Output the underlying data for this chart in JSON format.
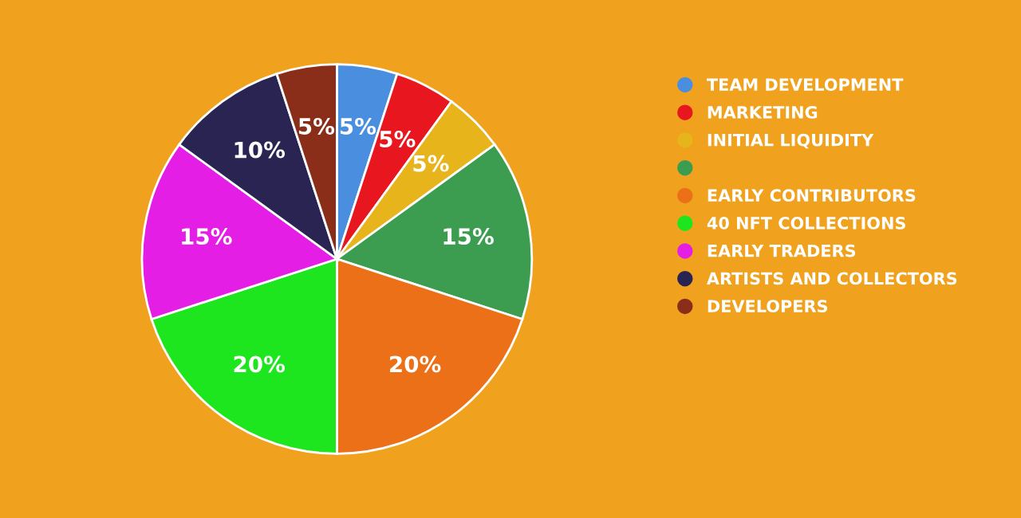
{
  "chart_data": {
    "type": "pie",
    "categories": [
      "TEAM DEVELOPMENT",
      "MARKETING",
      "INITIAL LIQUIDITY",
      null,
      "EARLY CONTRIBUTORS",
      "40 NFT COLLECTIONS",
      "EARLY TRADERS",
      "ARTISTS AND COLLECTORS",
      "DEVELOPERS"
    ],
    "values": [
      5,
      5,
      5,
      15,
      20,
      20,
      15,
      10,
      5
    ],
    "value_labels": [
      "5%",
      "5%",
      "5%",
      "15%",
      "20%",
      "20%",
      "15%",
      "10%",
      "5%"
    ],
    "colors": [
      "#4a8ee0",
      "#e8161e",
      "#e8b41c",
      "#3c9c50",
      "#ec7018",
      "#1ee61e",
      "#e41ee4",
      "#2a2452",
      "#8a2e1a"
    ],
    "legend": "right"
  }
}
